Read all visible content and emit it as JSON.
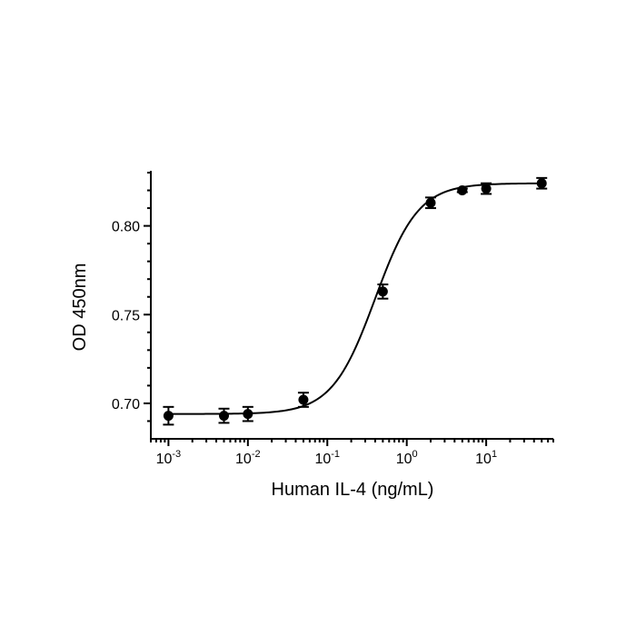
{
  "chart_data": {
    "type": "scatter",
    "xlabel": "Human IL-4 (ng/mL)",
    "ylabel": "OD 450nm",
    "x_scale": "log",
    "xlim": [
      0.0006,
      70
    ],
    "ylim": [
      0.68,
      0.83
    ],
    "x_ticks": [
      {
        "value": 0.001,
        "base": "10",
        "exp": "-3"
      },
      {
        "value": 0.01,
        "base": "10",
        "exp": "-2"
      },
      {
        "value": 0.1,
        "base": "10",
        "exp": "-1"
      },
      {
        "value": 1,
        "base": "10",
        "exp": "0"
      },
      {
        "value": 10,
        "base": "10",
        "exp": "1"
      }
    ],
    "y_ticks": [
      {
        "value": 0.7,
        "label": "0.70"
      },
      {
        "value": 0.75,
        "label": "0.75"
      },
      {
        "value": 0.8,
        "label": "0.80"
      }
    ],
    "grid": false,
    "series": [
      {
        "points": [
          {
            "x": 0.001,
            "y": 0.693,
            "err": 0.005
          },
          {
            "x": 0.005,
            "y": 0.693,
            "err": 0.004
          },
          {
            "x": 0.01,
            "y": 0.694,
            "err": 0.004
          },
          {
            "x": 0.05,
            "y": 0.702,
            "err": 0.004
          },
          {
            "x": 0.5,
            "y": 0.763,
            "err": 0.004
          },
          {
            "x": 2,
            "y": 0.813,
            "err": 0.003
          },
          {
            "x": 5,
            "y": 0.82,
            "err": 0.001
          },
          {
            "x": 10,
            "y": 0.821,
            "err": 0.003
          },
          {
            "x": 50,
            "y": 0.824,
            "err": 0.003
          }
        ],
        "fit": {
          "model": "4PL",
          "bottom": 0.694,
          "top": 0.824,
          "ec50": 0.4,
          "hill": 1.6
        }
      }
    ]
  }
}
